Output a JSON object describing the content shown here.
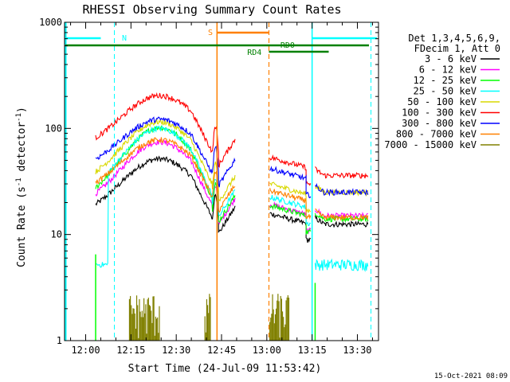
{
  "chart_data": {
    "type": "line",
    "title": "RHESSI Observing Summary Count Rates",
    "xlabel": "Start Time (24-Jul-09 11:53:42)",
    "ylabel_main": "Count Rate (s",
    "ylabel_sup1": "-1",
    "ylabel_mid": " detector",
    "ylabel_sup2": "-1",
    "ylabel_end": ")",
    "yscale": "log",
    "ylim": [
      1,
      1000
    ],
    "xlim_minutes": [
      -7,
      97
    ],
    "x_tick_labels": [
      "12:00",
      "12:15",
      "12:30",
      "12:45",
      "13:00",
      "13:15",
      "13:30"
    ],
    "x_tick_minutes": [
      0,
      15,
      30,
      45,
      60,
      75,
      90
    ],
    "y_tick_labels": [
      "1",
      "10",
      "100",
      "1000"
    ],
    "y_tick_values": [
      1,
      10,
      100,
      1000
    ],
    "legend_header": [
      "Det 1,3,4,5,6,9,",
      "FDecim 1, Att 0"
    ],
    "legend_placement": "right",
    "series": [
      {
        "name": "3 - 6 keV",
        "color": "#000000"
      },
      {
        "name": "6 - 12 keV",
        "color": "#ff00ff"
      },
      {
        "name": "12 - 25 keV",
        "color": "#00ff00"
      },
      {
        "name": "25 - 50 keV",
        "color": "#00ffff"
      },
      {
        "name": "50 - 100 keV",
        "color": "#d8d800"
      },
      {
        "name": "100 - 300 keV",
        "color": "#ff0000"
      },
      {
        "name": "300 - 800 keV",
        "color": "#0000ff"
      },
      {
        "name": "800 - 7000 keV",
        "color": "#ff8000"
      },
      {
        "name": "7000 - 15000 keV",
        "color": "#808000"
      }
    ],
    "flags": {
      "N": {
        "label": "N",
        "color": "#00ffff"
      },
      "S": {
        "label": "S",
        "color": "#ff8000"
      },
      "RD0": {
        "label": "RD0",
        "color": "#008000"
      },
      "RD4": {
        "label": "RD4",
        "color": "#008000"
      }
    },
    "timestamp": "15-Oct-2021 08:09"
  }
}
